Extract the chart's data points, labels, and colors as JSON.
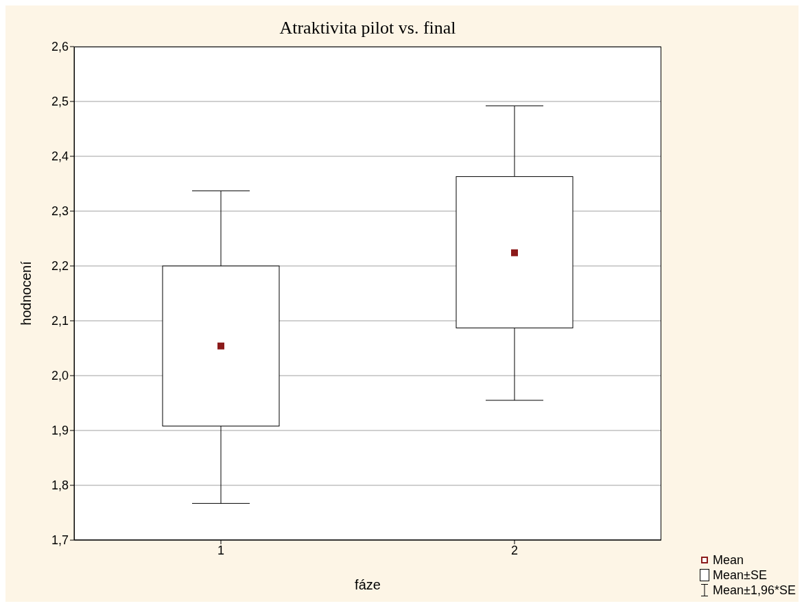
{
  "chart_data": {
    "type": "box",
    "title": "Atraktivita pilot vs. final",
    "xlabel": "fáze",
    "ylabel": "hodnocení",
    "categories": [
      "1",
      "2"
    ],
    "color": "#000000",
    "series": [
      {
        "color": "#000000",
        "boxes": [
          {
            "low": 1.767,
            "q1": 1.908,
            "q3": 2.2,
            "high": 2.337
          },
          {
            "low": 1.955,
            "q1": 2.087,
            "q3": 2.363,
            "high": 2.492
          }
        ]
      },
      {
        "type": "scatter",
        "color": "#8b1a1a",
        "x": [
          "1",
          "2"
        ],
        "values": [
          2.054,
          2.224
        ]
      }
    ],
    "ylim": [
      1.7,
      2.6
    ],
    "yticks": [
      {
        "value": 1.7,
        "label": "1,7"
      },
      {
        "value": 1.8,
        "label": "1,8"
      },
      {
        "value": 1.9,
        "label": "1,9"
      },
      {
        "value": 2.0,
        "label": "2,0"
      },
      {
        "value": 2.1,
        "label": "2,1"
      },
      {
        "value": 2.2,
        "label": "2,2"
      },
      {
        "value": 2.3,
        "label": "2,3"
      },
      {
        "value": 2.4,
        "label": "2,4"
      },
      {
        "value": 2.5,
        "label": "2,5"
      },
      {
        "value": 2.6,
        "label": "2,6"
      }
    ],
    "grid": "y",
    "marker": "square",
    "annotations": [
      "Mean",
      "Mean±SE",
      "Mean±1,96*SE"
    ]
  }
}
